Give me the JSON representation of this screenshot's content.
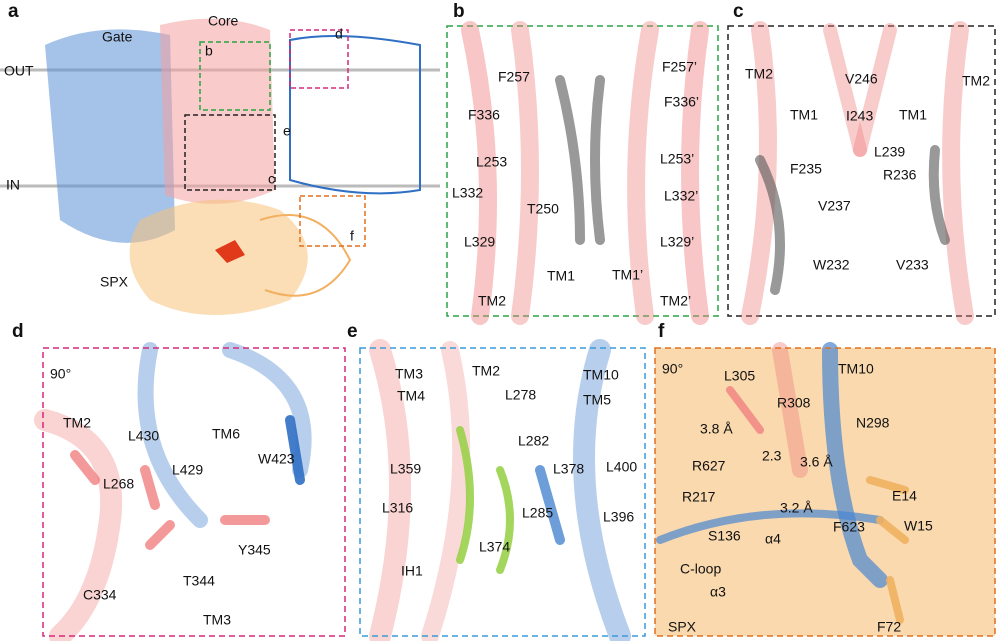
{
  "panels": [
    {
      "letter": "a",
      "labels": [
        "Gate",
        "Core",
        "OUT",
        "IN",
        "SPX",
        "b",
        "c",
        "d",
        "e",
        "f"
      ]
    },
    {
      "letter": "b",
      "labels": [
        "F257",
        "F257’",
        "F336",
        "F336’",
        "L253",
        "L253’",
        "L332",
        "L332’",
        "T250",
        "L329",
        "L329’",
        "TM1",
        "TM1’",
        "TM2",
        "TM2’"
      ]
    },
    {
      "letter": "c",
      "labels": [
        "TM2",
        "TM2",
        "V246",
        "TM1",
        "I243",
        "TM1",
        "L239",
        "F235",
        "R236",
        "V237",
        "W232",
        "V233"
      ]
    },
    {
      "letter": "d",
      "labels": [
        "90°",
        "TM2",
        "L430",
        "TM6",
        "W423",
        "L429",
        "L268",
        "Y345",
        "T344",
        "C334",
        "TM3"
      ]
    },
    {
      "letter": "e",
      "labels": [
        "TM3",
        "TM2",
        "TM10",
        "TM4",
        "L278",
        "TM5",
        "L282",
        "L359",
        "L378",
        "L400",
        "L316",
        "L285",
        "L396",
        "L374",
        "IH1"
      ]
    },
    {
      "letter": "f",
      "labels": [
        "90°",
        "L305",
        "TM10",
        "R308",
        "N298",
        "3.8 Å",
        "2.3",
        "3.6 Å",
        "R627",
        "R217",
        "E14",
        "3.2 Å",
        "W15",
        "S136",
        "α4",
        "F623",
        "C-loop",
        "α3",
        "SPX",
        "F72"
      ]
    }
  ]
}
